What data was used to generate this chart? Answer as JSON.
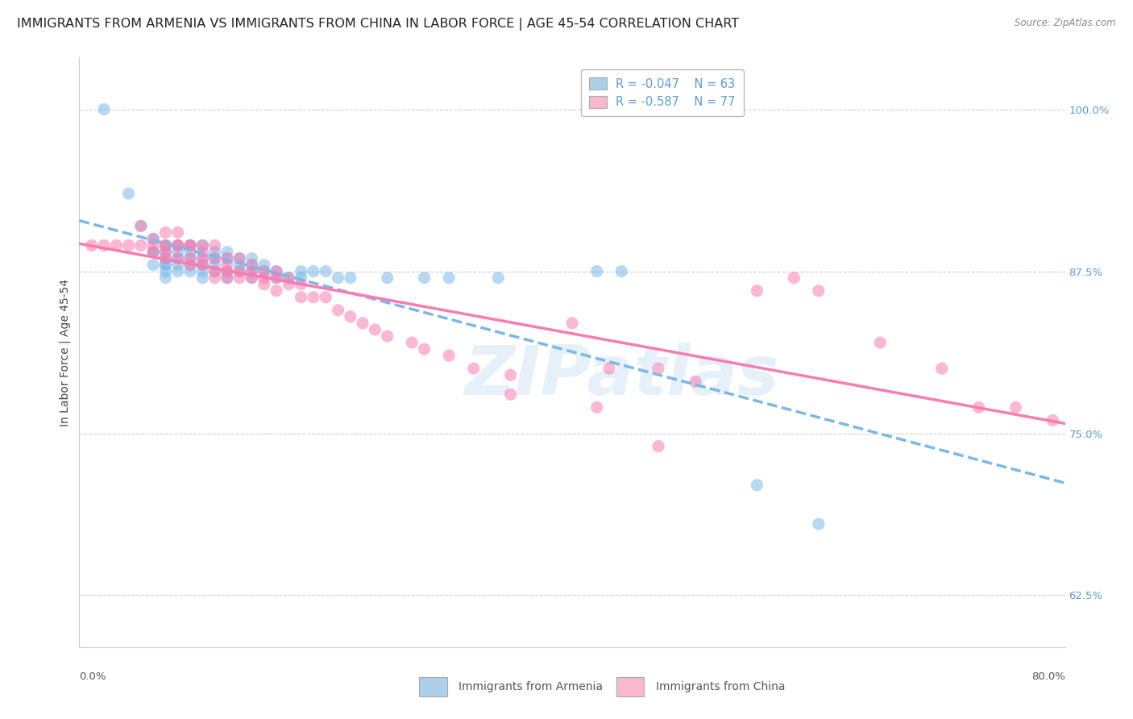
{
  "title": "IMMIGRANTS FROM ARMENIA VS IMMIGRANTS FROM CHINA IN LABOR FORCE | AGE 45-54 CORRELATION CHART",
  "source": "Source: ZipAtlas.com",
  "ylabel": "In Labor Force | Age 45-54",
  "ytick_labels": [
    "62.5%",
    "75.0%",
    "87.5%",
    "100.0%"
  ],
  "ytick_vals": [
    0.625,
    0.75,
    0.875,
    1.0
  ],
  "xlim": [
    0.0,
    0.8
  ],
  "ylim": [
    0.585,
    1.04
  ],
  "armenia_color": "#7ab8e8",
  "armenia_color_fill": "#aecfe8",
  "china_color": "#f87cb0",
  "china_color_fill": "#f7b8d0",
  "armenia_R": -0.047,
  "armenia_N": 63,
  "china_R": -0.587,
  "china_N": 77,
  "legend_label_armenia": "Immigrants from Armenia",
  "legend_label_china": "Immigrants from China",
  "watermark": "ZIPatlas",
  "title_fontsize": 11.5,
  "axis_label_fontsize": 10,
  "tick_label_fontsize": 9.5,
  "legend_fontsize": 10.5,
  "background_color": "#ffffff",
  "grid_color": "#c8c8c8",
  "right_axis_color": "#5b9bd5",
  "armenia_scatter_x": [
    0.02,
    0.04,
    0.05,
    0.06,
    0.06,
    0.06,
    0.06,
    0.07,
    0.07,
    0.07,
    0.07,
    0.07,
    0.07,
    0.07,
    0.08,
    0.08,
    0.08,
    0.08,
    0.08,
    0.09,
    0.09,
    0.09,
    0.09,
    0.09,
    0.1,
    0.1,
    0.1,
    0.1,
    0.1,
    0.11,
    0.11,
    0.11,
    0.11,
    0.12,
    0.12,
    0.12,
    0.12,
    0.13,
    0.13,
    0.13,
    0.14,
    0.14,
    0.14,
    0.14,
    0.15,
    0.15,
    0.16,
    0.16,
    0.17,
    0.18,
    0.18,
    0.19,
    0.2,
    0.21,
    0.22,
    0.25,
    0.28,
    0.3,
    0.34,
    0.42,
    0.44,
    0.55,
    0.6
  ],
  "armenia_scatter_y": [
    1.0,
    0.935,
    0.91,
    0.9,
    0.89,
    0.89,
    0.88,
    0.895,
    0.89,
    0.885,
    0.88,
    0.88,
    0.875,
    0.87,
    0.895,
    0.89,
    0.885,
    0.88,
    0.875,
    0.895,
    0.89,
    0.885,
    0.88,
    0.875,
    0.895,
    0.885,
    0.88,
    0.875,
    0.87,
    0.89,
    0.885,
    0.88,
    0.875,
    0.89,
    0.885,
    0.875,
    0.87,
    0.885,
    0.88,
    0.875,
    0.885,
    0.88,
    0.875,
    0.87,
    0.88,
    0.875,
    0.875,
    0.87,
    0.87,
    0.875,
    0.87,
    0.875,
    0.875,
    0.87,
    0.87,
    0.87,
    0.87,
    0.87,
    0.87,
    0.875,
    0.875,
    0.71,
    0.68
  ],
  "china_scatter_x": [
    0.01,
    0.02,
    0.03,
    0.04,
    0.05,
    0.05,
    0.06,
    0.06,
    0.06,
    0.07,
    0.07,
    0.07,
    0.07,
    0.07,
    0.08,
    0.08,
    0.08,
    0.08,
    0.09,
    0.09,
    0.09,
    0.09,
    0.1,
    0.1,
    0.1,
    0.1,
    0.11,
    0.11,
    0.11,
    0.11,
    0.12,
    0.12,
    0.12,
    0.12,
    0.13,
    0.13,
    0.13,
    0.14,
    0.14,
    0.14,
    0.15,
    0.15,
    0.15,
    0.16,
    0.16,
    0.16,
    0.17,
    0.17,
    0.18,
    0.18,
    0.19,
    0.2,
    0.21,
    0.22,
    0.23,
    0.24,
    0.25,
    0.27,
    0.28,
    0.3,
    0.32,
    0.35,
    0.4,
    0.43,
    0.47,
    0.5,
    0.55,
    0.58,
    0.6,
    0.65,
    0.7,
    0.73,
    0.76,
    0.79,
    0.35,
    0.42,
    0.47
  ],
  "china_scatter_y": [
    0.895,
    0.895,
    0.895,
    0.895,
    0.91,
    0.895,
    0.9,
    0.895,
    0.89,
    0.905,
    0.895,
    0.895,
    0.89,
    0.885,
    0.905,
    0.895,
    0.895,
    0.885,
    0.895,
    0.895,
    0.885,
    0.88,
    0.895,
    0.89,
    0.885,
    0.88,
    0.895,
    0.885,
    0.875,
    0.87,
    0.885,
    0.88,
    0.875,
    0.87,
    0.885,
    0.875,
    0.87,
    0.88,
    0.875,
    0.87,
    0.875,
    0.87,
    0.865,
    0.875,
    0.87,
    0.86,
    0.87,
    0.865,
    0.865,
    0.855,
    0.855,
    0.855,
    0.845,
    0.84,
    0.835,
    0.83,
    0.825,
    0.82,
    0.815,
    0.81,
    0.8,
    0.795,
    0.835,
    0.8,
    0.8,
    0.79,
    0.86,
    0.87,
    0.86,
    0.82,
    0.8,
    0.77,
    0.77,
    0.76,
    0.78,
    0.77,
    0.74
  ]
}
